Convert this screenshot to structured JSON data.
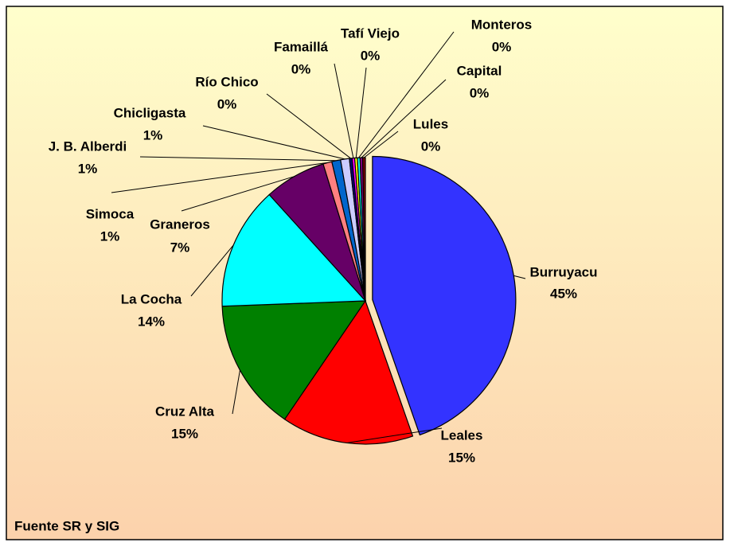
{
  "chart_data": {
    "type": "pie",
    "categories": [
      "Burruyacu",
      "Leales",
      "Cruz Alta",
      "La Cocha",
      "Graneros",
      "Simoca",
      "J. B. Alberdi",
      "Chicligasta",
      "Río Chico",
      "Famaillá",
      "Tafí Viejo",
      "Monteros",
      "Capital",
      "Lules"
    ],
    "values": [
      45,
      15,
      15,
      14,
      7,
      1,
      1,
      1,
      0.3,
      0.3,
      0.3,
      0.3,
      0.3,
      0.3
    ],
    "value_labels": [
      "45%",
      "15%",
      "15%",
      "14%",
      "7%",
      "1%",
      "1%",
      "1%",
      "0%",
      "0%",
      "0%",
      "0%",
      "0%",
      "0%"
    ],
    "colors": [
      "#3333ff",
      "#ff0000",
      "#008000",
      "#00ffff",
      "#660066",
      "#ff8080",
      "#0066cc",
      "#ccccff",
      "#000080",
      "#ff00ff",
      "#ffff00",
      "#00ffff",
      "#800080",
      "#800000"
    ],
    "note": "Fuente SR y SIG"
  }
}
